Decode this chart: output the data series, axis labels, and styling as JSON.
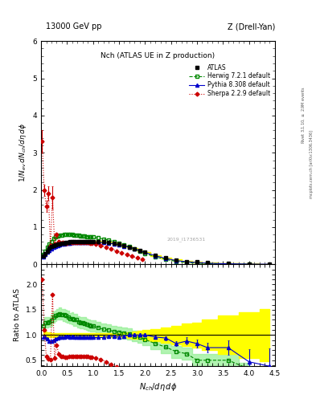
{
  "title_left": "13000 GeV pp",
  "title_right": "Z (Drell-Yan)",
  "plot_title": "Nch (ATLAS UE in Z production)",
  "xlabel": "$N_{ch}/d\\eta\\,d\\phi$",
  "ylabel_main": "$1/N_{ev}\\,dN_{ch}/d\\eta\\,d\\phi$",
  "ylabel_ratio": "Ratio to ATLAS",
  "inspire_label": "2019_I1736531",
  "rivet_label": "Rivet 3.1.10, $\\geq$ 2.9M events",
  "mcplots_label": "mcplots.cern.ch [arXiv:1306.3436]",
  "atlas_color": "#000000",
  "herwig_color": "#008800",
  "pythia_color": "#0000cc",
  "sherpa_color": "#cc0000",
  "atlas_band_color": "#ffff00",
  "herwig_band_color": "#90ee90",
  "ylim_main": [
    0,
    6
  ],
  "ylim_ratio": [
    0.39,
    2.4
  ],
  "xlim": [
    0,
    4.5
  ],
  "atlas_x": [
    0.04,
    0.08,
    0.12,
    0.16,
    0.2,
    0.24,
    0.28,
    0.32,
    0.36,
    0.4,
    0.44,
    0.48,
    0.52,
    0.56,
    0.6,
    0.64,
    0.68,
    0.72,
    0.76,
    0.8,
    0.84,
    0.88,
    0.92,
    0.96,
    1.0,
    1.1,
    1.2,
    1.3,
    1.4,
    1.5,
    1.6,
    1.7,
    1.8,
    1.9,
    2.0,
    2.2,
    2.4,
    2.6,
    2.8,
    3.0,
    3.2,
    3.6,
    4.0,
    4.4
  ],
  "atlas_y": [
    0.22,
    0.28,
    0.36,
    0.43,
    0.48,
    0.51,
    0.53,
    0.54,
    0.55,
    0.56,
    0.57,
    0.58,
    0.59,
    0.6,
    0.6,
    0.61,
    0.61,
    0.62,
    0.62,
    0.62,
    0.62,
    0.62,
    0.62,
    0.62,
    0.62,
    0.62,
    0.61,
    0.59,
    0.57,
    0.54,
    0.5,
    0.46,
    0.42,
    0.37,
    0.32,
    0.24,
    0.17,
    0.12,
    0.08,
    0.06,
    0.04,
    0.02,
    0.015,
    0.008
  ],
  "atlas_yerr": [
    0.01,
    0.01,
    0.01,
    0.01,
    0.01,
    0.01,
    0.01,
    0.01,
    0.01,
    0.01,
    0.01,
    0.01,
    0.01,
    0.01,
    0.01,
    0.01,
    0.01,
    0.01,
    0.01,
    0.01,
    0.01,
    0.01,
    0.01,
    0.01,
    0.01,
    0.01,
    0.01,
    0.01,
    0.01,
    0.01,
    0.01,
    0.01,
    0.01,
    0.01,
    0.01,
    0.01,
    0.01,
    0.01,
    0.01,
    0.005,
    0.005,
    0.003,
    0.003,
    0.002
  ],
  "herwig_x": [
    0.04,
    0.08,
    0.12,
    0.16,
    0.2,
    0.24,
    0.28,
    0.32,
    0.36,
    0.4,
    0.44,
    0.48,
    0.52,
    0.56,
    0.6,
    0.64,
    0.68,
    0.72,
    0.76,
    0.8,
    0.84,
    0.88,
    0.92,
    0.96,
    1.0,
    1.1,
    1.2,
    1.3,
    1.4,
    1.5,
    1.6,
    1.7,
    1.8,
    1.9,
    2.0,
    2.2,
    2.4,
    2.6,
    2.8,
    3.0,
    3.2,
    3.6,
    4.0
  ],
  "herwig_y": [
    0.26,
    0.35,
    0.45,
    0.54,
    0.62,
    0.69,
    0.73,
    0.76,
    0.78,
    0.79,
    0.8,
    0.8,
    0.8,
    0.8,
    0.8,
    0.79,
    0.79,
    0.78,
    0.77,
    0.77,
    0.76,
    0.75,
    0.74,
    0.73,
    0.73,
    0.71,
    0.68,
    0.65,
    0.61,
    0.57,
    0.52,
    0.47,
    0.41,
    0.35,
    0.29,
    0.2,
    0.13,
    0.08,
    0.05,
    0.03,
    0.02,
    0.01,
    0.005
  ],
  "pythia_x": [
    0.04,
    0.08,
    0.12,
    0.16,
    0.2,
    0.24,
    0.28,
    0.32,
    0.36,
    0.4,
    0.44,
    0.48,
    0.52,
    0.56,
    0.6,
    0.64,
    0.68,
    0.72,
    0.76,
    0.8,
    0.84,
    0.88,
    0.92,
    0.96,
    1.0,
    1.1,
    1.2,
    1.3,
    1.4,
    1.5,
    1.6,
    1.7,
    1.8,
    1.9,
    2.0,
    2.2,
    2.4,
    2.6,
    2.8,
    3.0,
    3.2,
    3.6,
    4.0,
    4.4
  ],
  "pythia_y": [
    0.21,
    0.27,
    0.33,
    0.38,
    0.42,
    0.46,
    0.49,
    0.51,
    0.53,
    0.54,
    0.55,
    0.56,
    0.57,
    0.57,
    0.58,
    0.58,
    0.58,
    0.59,
    0.59,
    0.59,
    0.59,
    0.59,
    0.59,
    0.59,
    0.59,
    0.59,
    0.58,
    0.57,
    0.55,
    0.52,
    0.49,
    0.46,
    0.42,
    0.37,
    0.32,
    0.23,
    0.16,
    0.1,
    0.07,
    0.05,
    0.03,
    0.015,
    0.007,
    0.003
  ],
  "pythia_yerr": [
    0.005,
    0.005,
    0.005,
    0.005,
    0.005,
    0.005,
    0.005,
    0.005,
    0.005,
    0.005,
    0.005,
    0.005,
    0.005,
    0.005,
    0.005,
    0.005,
    0.005,
    0.005,
    0.005,
    0.005,
    0.005,
    0.005,
    0.005,
    0.005,
    0.005,
    0.005,
    0.005,
    0.005,
    0.005,
    0.005,
    0.005,
    0.005,
    0.005,
    0.005,
    0.005,
    0.005,
    0.005,
    0.005,
    0.01,
    0.01,
    0.01,
    0.015,
    0.03,
    0.05
  ],
  "sherpa_x": [
    0.02,
    0.06,
    0.1,
    0.14,
    0.18,
    0.22,
    0.26,
    0.3,
    0.34,
    0.38,
    0.42,
    0.46,
    0.5,
    0.54,
    0.58,
    0.62,
    0.66,
    0.7,
    0.74,
    0.78,
    0.82,
    0.86,
    0.9,
    0.94,
    0.98,
    1.05,
    1.15,
    1.25,
    1.35,
    1.45,
    1.55,
    1.65,
    1.75,
    1.85,
    1.95
  ],
  "sherpa_y": [
    3.3,
    2.0,
    1.55,
    1.9,
    0.5,
    1.8,
    0.55,
    0.8,
    0.6,
    0.56,
    0.58,
    0.56,
    0.57,
    0.58,
    0.59,
    0.59,
    0.58,
    0.59,
    0.58,
    0.59,
    0.59,
    0.59,
    0.58,
    0.57,
    0.57,
    0.55,
    0.51,
    0.46,
    0.41,
    0.36,
    0.31,
    0.26,
    0.22,
    0.17,
    0.13
  ],
  "sherpa_yerr": [
    0.3,
    0.15,
    0.15,
    0.2,
    0.05,
    0.3,
    0.05,
    0.05,
    0.05,
    0.03,
    0.03,
    0.03,
    0.03,
    0.03,
    0.03,
    0.03,
    0.03,
    0.03,
    0.03,
    0.03,
    0.03,
    0.03,
    0.03,
    0.03,
    0.03,
    0.03,
    0.02,
    0.02,
    0.02,
    0.02,
    0.02,
    0.02,
    0.02,
    0.02,
    0.02
  ],
  "herwig_ratio_x": [
    0.04,
    0.08,
    0.12,
    0.16,
    0.2,
    0.24,
    0.28,
    0.32,
    0.36,
    0.4,
    0.44,
    0.48,
    0.52,
    0.56,
    0.6,
    0.64,
    0.68,
    0.72,
    0.76,
    0.8,
    0.84,
    0.88,
    0.92,
    0.96,
    1.0,
    1.1,
    1.2,
    1.3,
    1.4,
    1.5,
    1.6,
    1.7,
    1.8,
    1.9,
    2.0,
    2.2,
    2.4,
    2.6,
    2.8,
    3.0,
    3.2,
    3.6,
    4.0
  ],
  "herwig_ratio_y": [
    1.18,
    1.25,
    1.25,
    1.26,
    1.29,
    1.35,
    1.38,
    1.41,
    1.42,
    1.41,
    1.4,
    1.38,
    1.36,
    1.33,
    1.33,
    1.3,
    1.3,
    1.26,
    1.24,
    1.24,
    1.23,
    1.21,
    1.19,
    1.18,
    1.18,
    1.15,
    1.11,
    1.1,
    1.07,
    1.06,
    1.04,
    1.02,
    0.98,
    0.95,
    0.91,
    0.83,
    0.76,
    0.67,
    0.63,
    0.5,
    0.5,
    0.5,
    0.33
  ],
  "pythia_ratio_x": [
    0.04,
    0.08,
    0.12,
    0.16,
    0.2,
    0.24,
    0.28,
    0.32,
    0.36,
    0.4,
    0.44,
    0.48,
    0.52,
    0.56,
    0.6,
    0.64,
    0.68,
    0.72,
    0.76,
    0.8,
    0.84,
    0.88,
    0.92,
    0.96,
    1.0,
    1.1,
    1.2,
    1.3,
    1.4,
    1.5,
    1.6,
    1.7,
    1.8,
    1.9,
    2.0,
    2.2,
    2.4,
    2.6,
    2.8,
    3.0,
    3.2,
    3.6,
    4.0,
    4.4
  ],
  "pythia_ratio_y": [
    0.95,
    0.96,
    0.92,
    0.88,
    0.88,
    0.9,
    0.92,
    0.94,
    0.96,
    0.96,
    0.96,
    0.97,
    0.97,
    0.95,
    0.97,
    0.95,
    0.95,
    0.95,
    0.95,
    0.95,
    0.95,
    0.95,
    0.95,
    0.95,
    0.95,
    0.95,
    0.95,
    0.97,
    0.97,
    0.96,
    0.98,
    1.0,
    1.0,
    1.0,
    1.0,
    0.96,
    0.94,
    0.83,
    0.88,
    0.83,
    0.75,
    0.75,
    0.47,
    0.38
  ],
  "pythia_ratio_yerr": [
    0.02,
    0.02,
    0.02,
    0.02,
    0.02,
    0.02,
    0.02,
    0.02,
    0.02,
    0.02,
    0.02,
    0.02,
    0.02,
    0.02,
    0.02,
    0.02,
    0.02,
    0.02,
    0.02,
    0.02,
    0.02,
    0.02,
    0.02,
    0.02,
    0.02,
    0.02,
    0.02,
    0.02,
    0.02,
    0.02,
    0.02,
    0.03,
    0.03,
    0.03,
    0.03,
    0.03,
    0.04,
    0.05,
    0.07,
    0.08,
    0.1,
    0.15,
    0.25,
    0.35
  ],
  "sherpa_ratio_x": [
    0.02,
    0.06,
    0.1,
    0.14,
    0.18,
    0.22,
    0.26,
    0.3,
    0.34,
    0.38,
    0.42,
    0.46,
    0.5,
    0.54,
    0.58,
    0.62,
    0.66,
    0.7,
    0.74,
    0.78,
    0.82,
    0.86,
    0.9,
    0.94,
    0.98,
    1.05,
    1.15,
    1.25,
    1.35,
    1.45,
    1.55,
    1.65,
    1.75,
    1.85,
    1.95
  ],
  "sherpa_ratio_y": [
    2.1,
    1.1,
    0.58,
    0.53,
    0.52,
    1.8,
    0.55,
    0.8,
    0.62,
    0.58,
    0.58,
    0.56,
    0.56,
    0.57,
    0.58,
    0.58,
    0.57,
    0.58,
    0.57,
    0.58,
    0.58,
    0.58,
    0.57,
    0.56,
    0.56,
    0.55,
    0.52,
    0.47,
    0.42,
    0.37,
    0.32,
    0.28,
    0.23,
    0.18,
    0.14
  ],
  "atlas_band_x": [
    0.04,
    0.08,
    0.12,
    0.16,
    0.2,
    0.24,
    0.28,
    0.32,
    0.36,
    0.4,
    0.44,
    0.48,
    0.52,
    0.56,
    0.6,
    0.64,
    0.68,
    0.72,
    0.76,
    0.8,
    0.84,
    0.88,
    0.92,
    0.96,
    1.0,
    1.1,
    1.2,
    1.3,
    1.4,
    1.5,
    1.6,
    1.7,
    1.8,
    1.9,
    2.0,
    2.2,
    2.4,
    2.6,
    2.8,
    3.0,
    3.2,
    3.6,
    4.0,
    4.4
  ],
  "atlas_band_lo": [
    0.92,
    0.93,
    0.94,
    0.95,
    0.96,
    0.96,
    0.96,
    0.96,
    0.96,
    0.96,
    0.96,
    0.96,
    0.96,
    0.96,
    0.96,
    0.96,
    0.96,
    0.96,
    0.96,
    0.96,
    0.96,
    0.96,
    0.96,
    0.96,
    0.96,
    0.96,
    0.96,
    0.96,
    0.96,
    0.96,
    0.95,
    0.94,
    0.93,
    0.92,
    0.9,
    0.88,
    0.85,
    0.82,
    0.78,
    0.75,
    0.7,
    0.62,
    0.55,
    0.48
  ],
  "atlas_band_hi": [
    1.08,
    1.07,
    1.06,
    1.05,
    1.04,
    1.04,
    1.04,
    1.04,
    1.04,
    1.04,
    1.04,
    1.04,
    1.04,
    1.04,
    1.04,
    1.04,
    1.04,
    1.04,
    1.04,
    1.04,
    1.04,
    1.04,
    1.04,
    1.04,
    1.04,
    1.04,
    1.04,
    1.04,
    1.04,
    1.04,
    1.05,
    1.06,
    1.07,
    1.08,
    1.1,
    1.12,
    1.15,
    1.18,
    1.22,
    1.25,
    1.3,
    1.38,
    1.45,
    1.52
  ],
  "herwig_band_x": [
    0.04,
    0.08,
    0.12,
    0.16,
    0.2,
    0.24,
    0.28,
    0.32,
    0.36,
    0.4,
    0.44,
    0.48,
    0.52,
    0.56,
    0.6,
    0.64,
    0.68,
    0.72,
    0.76,
    0.8,
    0.84,
    0.88,
    0.92,
    0.96,
    1.0,
    1.1,
    1.2,
    1.3,
    1.4,
    1.5,
    1.6,
    1.7,
    1.8,
    1.9,
    2.0,
    2.2,
    2.4,
    2.6,
    2.8,
    3.0,
    3.2,
    3.6,
    4.0
  ],
  "herwig_band_lo": [
    1.1,
    1.15,
    1.15,
    1.16,
    1.18,
    1.24,
    1.27,
    1.3,
    1.3,
    1.3,
    1.28,
    1.26,
    1.24,
    1.22,
    1.21,
    1.18,
    1.18,
    1.15,
    1.13,
    1.13,
    1.11,
    1.1,
    1.08,
    1.07,
    1.07,
    1.04,
    1.0,
    0.99,
    0.96,
    0.95,
    0.93,
    0.91,
    0.87,
    0.84,
    0.8,
    0.72,
    0.64,
    0.55,
    0.51,
    0.38,
    0.38,
    0.38,
    0.21
  ],
  "herwig_band_hi": [
    1.26,
    1.35,
    1.35,
    1.36,
    1.4,
    1.46,
    1.49,
    1.52,
    1.54,
    1.52,
    1.52,
    1.5,
    1.48,
    1.44,
    1.45,
    1.42,
    1.42,
    1.37,
    1.35,
    1.35,
    1.35,
    1.32,
    1.3,
    1.29,
    1.29,
    1.26,
    1.22,
    1.21,
    1.18,
    1.17,
    1.15,
    1.13,
    1.09,
    1.06,
    1.02,
    0.94,
    0.88,
    0.79,
    0.75,
    0.62,
    0.62,
    0.62,
    0.45
  ]
}
